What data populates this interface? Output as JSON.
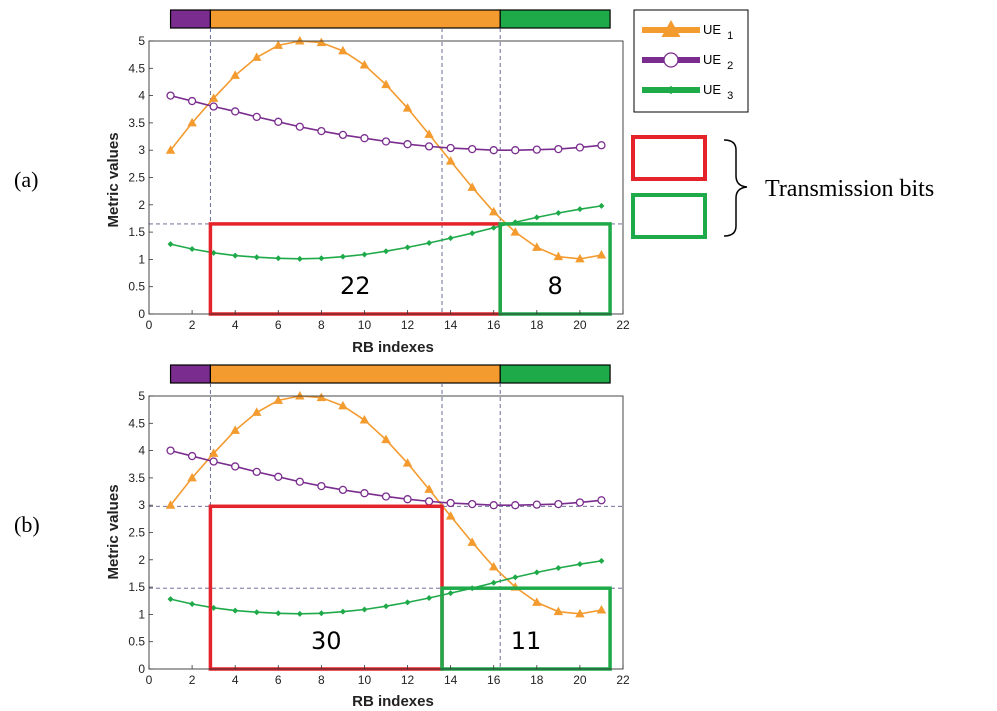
{
  "colors": {
    "ue1": "#F39B2F",
    "ue2": "#7A2D8E",
    "ue3": "#1FAA4A",
    "red_box": "#E5232A",
    "green_box": "#1FAA4A",
    "guide": "#5B5E8C"
  },
  "legend": {
    "entries": [
      {
        "base": "UE",
        "sub": "1",
        "color_key": "ue1",
        "marker": "triangle"
      },
      {
        "base": "UE",
        "sub": "2",
        "color_key": "ue2",
        "marker": "circle"
      },
      {
        "base": "UE",
        "sub": "3",
        "color_key": "ue3",
        "marker": "square"
      }
    ]
  },
  "annotation": {
    "text": "Transmission bits"
  },
  "chart_data": [
    {
      "type": "line",
      "panel_label": "(a)",
      "xlabel": "RB indexes",
      "ylabel": "Metric values",
      "xlim": [
        0,
        22
      ],
      "ylim": [
        0,
        5
      ],
      "xticks": [
        "0",
        "2",
        "4",
        "6",
        "8",
        "10",
        "12",
        "14",
        "16",
        "18",
        "20",
        "22"
      ],
      "yticks": [
        "0",
        "0.5",
        "1",
        "1.5",
        "2",
        "2.5",
        "3",
        "3.5",
        "4",
        "4.5",
        "5"
      ],
      "x": [
        1,
        2,
        3,
        4,
        5,
        6,
        7,
        8,
        9,
        10,
        11,
        12,
        13,
        14,
        15,
        16,
        17,
        18,
        19,
        20,
        21
      ],
      "series": [
        {
          "name": "UE 1",
          "color_key": "ue1",
          "marker": "triangle",
          "values": [
            3.0,
            3.5,
            3.95,
            4.37,
            4.7,
            4.92,
            5.0,
            4.97,
            4.82,
            4.56,
            4.2,
            3.77,
            3.29,
            2.8,
            2.32,
            1.87,
            1.5,
            1.22,
            1.05,
            1.01,
            1.08
          ]
        },
        {
          "name": "UE 2",
          "color_key": "ue2",
          "marker": "circle",
          "values": [
            4.0,
            3.9,
            3.8,
            3.71,
            3.61,
            3.52,
            3.43,
            3.35,
            3.28,
            3.22,
            3.16,
            3.11,
            3.07,
            3.04,
            3.02,
            3.0,
            3.0,
            3.01,
            3.02,
            3.05,
            3.09
          ]
        },
        {
          "name": "UE 3",
          "color_key": "ue3",
          "marker": "square",
          "values": [
            1.28,
            1.19,
            1.12,
            1.07,
            1.04,
            1.02,
            1.01,
            1.02,
            1.05,
            1.09,
            1.15,
            1.22,
            1.3,
            1.39,
            1.48,
            1.58,
            1.68,
            1.77,
            1.85,
            1.92,
            1.98
          ]
        }
      ],
      "guides_x": [
        2.85,
        13.6,
        16.3
      ],
      "guides_y": [
        1.65
      ],
      "boxes": [
        {
          "label": "22",
          "color_key": "red_box",
          "x0": 2.85,
          "x1": 16.3,
          "y0": 0,
          "y1": 1.65
        },
        {
          "label": "8",
          "color_key": "green_box",
          "x0": 16.3,
          "x1": 21.4,
          "y0": 0,
          "y1": 1.65
        }
      ],
      "allocation_bar": [
        {
          "color_key": "ue2",
          "x0": 1,
          "x1": 2.85
        },
        {
          "color_key": "ue1",
          "x0": 2.85,
          "x1": 16.3
        },
        {
          "color_key": "ue3",
          "x0": 16.3,
          "x1": 21.4
        }
      ],
      "grid": false
    },
    {
      "type": "line",
      "panel_label": "(b)",
      "xlabel": "RB indexes",
      "ylabel": "Metric values",
      "xlim": [
        0,
        22
      ],
      "ylim": [
        0,
        5
      ],
      "xticks": [
        "0",
        "2",
        "4",
        "6",
        "8",
        "10",
        "12",
        "14",
        "16",
        "18",
        "20",
        "22"
      ],
      "yticks": [
        "0",
        "0.5",
        "1",
        "1.5",
        "2",
        "2.5",
        "3",
        "3.5",
        "4",
        "4.5",
        "5"
      ],
      "x": [
        1,
        2,
        3,
        4,
        5,
        6,
        7,
        8,
        9,
        10,
        11,
        12,
        13,
        14,
        15,
        16,
        17,
        18,
        19,
        20,
        21
      ],
      "series": [
        {
          "name": "UE 1",
          "color_key": "ue1",
          "marker": "triangle",
          "values": [
            3.0,
            3.5,
            3.95,
            4.37,
            4.7,
            4.92,
            5.0,
            4.97,
            4.82,
            4.56,
            4.2,
            3.77,
            3.29,
            2.8,
            2.32,
            1.87,
            1.5,
            1.22,
            1.05,
            1.01,
            1.08
          ]
        },
        {
          "name": "UE 2",
          "color_key": "ue2",
          "marker": "circle",
          "values": [
            4.0,
            3.9,
            3.8,
            3.71,
            3.61,
            3.52,
            3.43,
            3.35,
            3.28,
            3.22,
            3.16,
            3.11,
            3.07,
            3.04,
            3.02,
            3.0,
            3.0,
            3.01,
            3.02,
            3.05,
            3.09
          ]
        },
        {
          "name": "UE 3",
          "color_key": "ue3",
          "marker": "square",
          "values": [
            1.28,
            1.19,
            1.12,
            1.07,
            1.04,
            1.02,
            1.01,
            1.02,
            1.05,
            1.09,
            1.15,
            1.22,
            1.3,
            1.39,
            1.48,
            1.58,
            1.68,
            1.77,
            1.85,
            1.92,
            1.98
          ]
        }
      ],
      "guides_x": [
        2.85,
        13.6,
        16.3
      ],
      "guides_y": [
        1.48,
        2.98
      ],
      "boxes": [
        {
          "label": "30",
          "color_key": "red_box",
          "x0": 2.85,
          "x1": 13.6,
          "y0": 0,
          "y1": 2.98
        },
        {
          "label": "11",
          "color_key": "green_box",
          "x0": 13.6,
          "x1": 21.4,
          "y0": 0,
          "y1": 1.48
        }
      ],
      "allocation_bar": [
        {
          "color_key": "ue2",
          "x0": 1,
          "x1": 2.85
        },
        {
          "color_key": "ue1",
          "x0": 2.85,
          "x1": 16.3
        },
        {
          "color_key": "ue3",
          "x0": 16.3,
          "x1": 21.4
        }
      ],
      "grid": false
    }
  ]
}
